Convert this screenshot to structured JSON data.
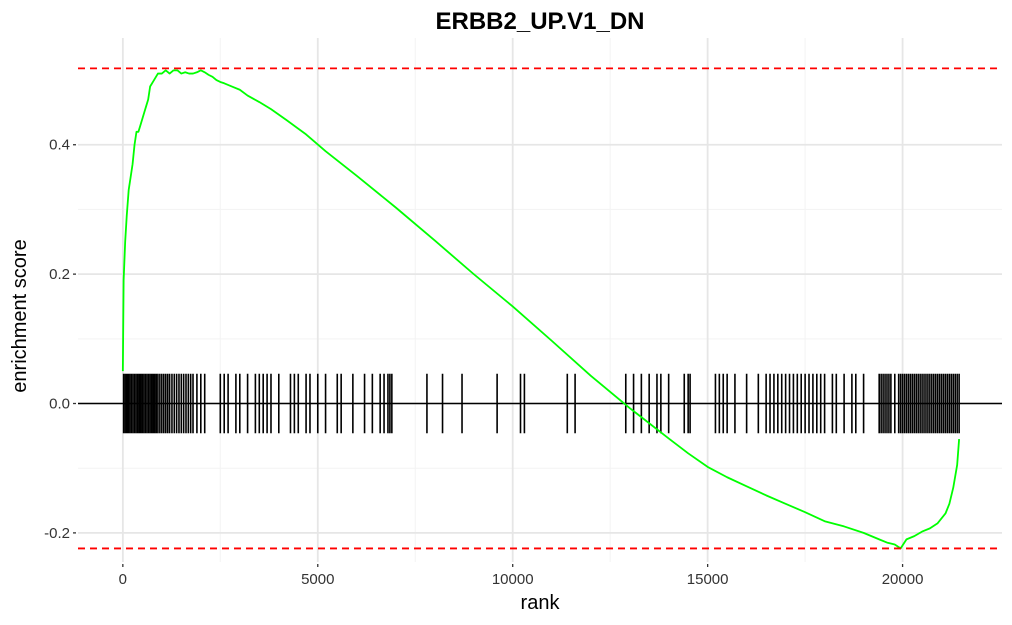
{
  "chart_data": {
    "type": "line",
    "title": "ERBB2_UP.V1_DN",
    "xlabel": "rank",
    "ylabel": "enrichment score",
    "xlim": [
      -1150,
      22550
    ],
    "ylim": [
      -0.245,
      0.565
    ],
    "x_ticks": [
      0,
      5000,
      10000,
      15000,
      20000
    ],
    "x_tick_labels": [
      "0",
      "5000",
      "10000",
      "15000",
      "20000"
    ],
    "y_ticks": [
      -0.2,
      0.0,
      0.2,
      0.4
    ],
    "y_tick_labels": [
      "-0.2",
      "0.0",
      "0.2",
      "0.4"
    ],
    "grid": true,
    "legend": "none",
    "series": [
      {
        "color": "#00ff00",
        "x": [
          0,
          20,
          60,
          100,
          150,
          200,
          250,
          300,
          350,
          400,
          450,
          500,
          550,
          600,
          650,
          700,
          800,
          900,
          1000,
          1100,
          1200,
          1300,
          1400,
          1500,
          1600,
          1700,
          1800,
          1900,
          2000,
          2100,
          2200,
          2300,
          2400,
          2500,
          2600,
          2800,
          3000,
          3200,
          3500,
          3800,
          4200,
          4700,
          5200,
          6000,
          7000,
          8000,
          9000,
          10000,
          11000,
          12000,
          13000,
          14000,
          14500,
          15000,
          15500,
          16000,
          16500,
          17000,
          17500,
          18000,
          18500,
          19000,
          19200,
          19400,
          19600,
          19800,
          19950,
          20100,
          20300,
          20500,
          20700,
          20900,
          21100,
          21200,
          21300,
          21400,
          21450
        ],
        "y": [
          0.05,
          0.19,
          0.25,
          0.29,
          0.33,
          0.35,
          0.37,
          0.4,
          0.42,
          0.42,
          0.43,
          0.44,
          0.45,
          0.46,
          0.47,
          0.49,
          0.5,
          0.51,
          0.51,
          0.515,
          0.51,
          0.515,
          0.515,
          0.51,
          0.512,
          0.51,
          0.51,
          0.512,
          0.515,
          0.512,
          0.508,
          0.505,
          0.5,
          0.497,
          0.495,
          0.49,
          0.485,
          0.476,
          0.466,
          0.455,
          0.438,
          0.416,
          0.39,
          0.352,
          0.303,
          0.252,
          0.2,
          0.15,
          0.097,
          0.043,
          -0.007,
          -0.054,
          -0.077,
          -0.098,
          -0.114,
          -0.128,
          -0.142,
          -0.155,
          -0.168,
          -0.182,
          -0.19,
          -0.2,
          -0.205,
          -0.21,
          -0.215,
          -0.218,
          -0.224,
          -0.21,
          -0.205,
          -0.198,
          -0.193,
          -0.185,
          -0.17,
          -0.155,
          -0.13,
          -0.095,
          -0.055
        ]
      }
    ],
    "gene_hits": [
      20,
      60,
      100,
      140,
      180,
      220,
      260,
      300,
      340,
      380,
      420,
      460,
      500,
      540,
      580,
      620,
      660,
      700,
      740,
      780,
      820,
      860,
      900,
      950,
      1000,
      1050,
      1100,
      1150,
      1200,
      1260,
      1320,
      1380,
      1440,
      1500,
      1560,
      1620,
      1680,
      1740,
      1800,
      1900,
      2000,
      2100,
      2500,
      2600,
      2700,
      2900,
      3000,
      3200,
      3400,
      3500,
      3600,
      3700,
      3800,
      4000,
      4300,
      4400,
      4500,
      4700,
      4800,
      5000,
      5200,
      5500,
      5600,
      5900,
      6200,
      6400,
      6600,
      6700,
      6800,
      6850,
      6900,
      7800,
      8200,
      8700,
      9600,
      10200,
      10300,
      11400,
      11600,
      12900,
      13100,
      13300,
      13500,
      13700,
      13800,
      14000,
      14400,
      14500,
      14550,
      15200,
      15300,
      15400,
      15500,
      15700,
      16000,
      16300,
      16500,
      16600,
      16700,
      16800,
      16900,
      17000,
      17100,
      17200,
      17300,
      17400,
      17500,
      17600,
      17700,
      17800,
      17900,
      18000,
      18200,
      18300,
      18500,
      18700,
      18800,
      19000,
      19400,
      19450,
      19500,
      19550,
      19600,
      19650,
      19700,
      19800,
      19900,
      19950,
      20000,
      20050,
      20100,
      20150,
      20200,
      20250,
      20300,
      20350,
      20400,
      20450,
      20500,
      20550,
      20600,
      20650,
      20700,
      20750,
      20800,
      20850,
      20900,
      20950,
      21000,
      21050,
      21100,
      21150,
      21200,
      21250,
      21300,
      21350,
      21400,
      21450
    ],
    "reference_lines": {
      "max": 0.518,
      "min": -0.224,
      "color": "#ff0000"
    }
  }
}
